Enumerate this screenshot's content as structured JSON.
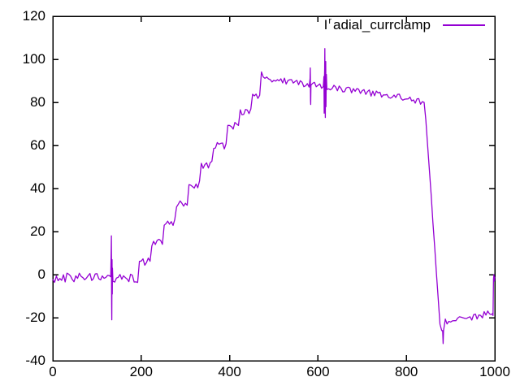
{
  "chart_data": {
    "type": "line",
    "title": "",
    "xlabel": "",
    "ylabel": "",
    "grid": false,
    "background_color": "#ffffff",
    "axis_color": "#000000",
    "line_color": "#9400d3",
    "legend": {
      "prefix": "I",
      "sup": "r",
      "rest": "adial_currclamp",
      "display": "Iʳadial_currclamp",
      "position": "top-right"
    },
    "x_axis": {
      "min": 0,
      "max": 1000,
      "ticks": [
        0,
        200,
        400,
        600,
        800,
        1000
      ],
      "mirrored_ticks": true
    },
    "y_axis": {
      "min": -40,
      "max": 120,
      "ticks": [
        -40,
        -20,
        0,
        20,
        40,
        60,
        80,
        100,
        120
      ],
      "mirrored_ticks": true
    },
    "series": [
      {
        "name": "Iʳadial_currclamp",
        "color": "#9400d3",
        "sample_step": 4,
        "noise_seed": 20240601,
        "base_keypoints": [
          [
            0,
            -1.5
          ],
          [
            195,
            -1.5
          ],
          [
            196,
            6
          ],
          [
            223,
            6
          ],
          [
            224,
            15
          ],
          [
            251,
            15
          ],
          [
            252,
            24
          ],
          [
            279,
            24
          ],
          [
            280,
            33
          ],
          [
            307,
            33
          ],
          [
            308,
            42
          ],
          [
            335,
            42
          ],
          [
            336,
            51
          ],
          [
            363,
            51
          ],
          [
            364,
            60
          ],
          [
            393,
            60
          ],
          [
            394,
            69
          ],
          [
            423,
            69
          ],
          [
            424,
            76
          ],
          [
            448,
            76
          ],
          [
            449,
            83
          ],
          [
            468,
            83
          ],
          [
            469,
            92.5
          ],
          [
            473,
            92.5
          ],
          [
            475,
            90.5
          ],
          [
            560,
            89
          ],
          [
            613,
            88
          ],
          [
            621,
            87
          ],
          [
            700,
            85
          ],
          [
            780,
            82.5
          ],
          [
            840,
            80
          ],
          [
            842,
            78
          ],
          [
            876,
            -23
          ],
          [
            880,
            -26
          ],
          [
            888,
            -22
          ],
          [
            935,
            -20.5
          ],
          [
            993,
            -17.5
          ],
          [
            995,
            -18
          ]
        ],
        "noise_segments": [
          [
            0,
            131,
            2.2
          ],
          [
            136,
            196,
            2.2
          ],
          [
            196,
            469,
            1.9
          ],
          [
            469,
            613,
            1.7
          ],
          [
            621,
            840,
            1.5
          ],
          [
            842,
            876,
            0.6
          ],
          [
            888,
            995,
            1.5
          ]
        ],
        "spikes": [
          {
            "range": [
              131,
              136
            ],
            "points": [
              [
                131,
                -1
              ],
              [
                132,
                10
              ],
              [
                132.5,
                18
              ],
              [
                133,
                -14
              ],
              [
                133.5,
                -21
              ],
              [
                134,
                7
              ],
              [
                134.5,
                -9
              ],
              [
                135,
                3
              ],
              [
                136,
                -3
              ]
            ]
          },
          {
            "range": [
              582,
              585
            ],
            "points": [
              [
                582,
                91
              ],
              [
                582.5,
                96
              ],
              [
                583,
                81
              ],
              [
                583.5,
                79
              ],
              [
                584,
                88
              ]
            ]
          },
          {
            "range": [
              613,
              621
            ],
            "points": [
              [
                613.5,
                92
              ],
              [
                614,
                75
              ],
              [
                614.5,
                90
              ],
              [
                615,
                96
              ],
              [
                615.5,
                105
              ],
              [
                616,
                84
              ],
              [
                616.5,
                73
              ],
              [
                617,
                95
              ],
              [
                617.5,
                99
              ],
              [
                618,
                78
              ],
              [
                618.5,
                88
              ],
              [
                619,
                93
              ],
              [
                620,
                86
              ]
            ]
          },
          {
            "range": [
              882,
              885
            ],
            "points": [
              [
                882,
                -26
              ],
              [
                883,
                -32
              ],
              [
                884,
                -26
              ]
            ]
          },
          {
            "range": [
              995,
              1000
            ],
            "points": [
              [
                995.5,
                -18
              ],
              [
                996,
                -19
              ],
              [
                997,
                -2
              ],
              [
                998,
                0
              ],
              [
                999,
                -3
              ],
              [
                1000,
                -1
              ]
            ]
          }
        ]
      }
    ]
  }
}
